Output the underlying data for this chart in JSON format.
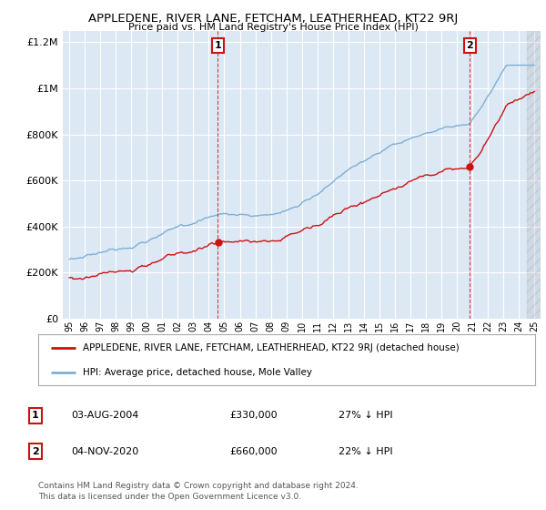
{
  "title": "APPLEDENE, RIVER LANE, FETCHAM, LEATHERHEAD, KT22 9RJ",
  "subtitle": "Price paid vs. HM Land Registry's House Price Index (HPI)",
  "ylim": [
    0,
    1250000
  ],
  "yticks": [
    0,
    200000,
    400000,
    600000,
    800000,
    1000000,
    1200000
  ],
  "background_color": "#ffffff",
  "plot_bg_color": "#dce9f5",
  "grid_color": "#ffffff",
  "hpi_color": "#7fafd4",
  "price_color": "#cc1111",
  "legend_line1": "APPLEDENE, RIVER LANE, FETCHAM, LEATHERHEAD, KT22 9RJ (detached house)",
  "legend_line2": "HPI: Average price, detached house, Mole Valley",
  "sale1_year": 2004.583,
  "sale1_price": 330000,
  "sale2_year": 2020.833,
  "sale2_price": 660000,
  "footer": "Contains HM Land Registry data © Crown copyright and database right 2024.\nThis data is licensed under the Open Government Licence v3.0.",
  "x_start_year": 1995,
  "x_end_year": 2025
}
